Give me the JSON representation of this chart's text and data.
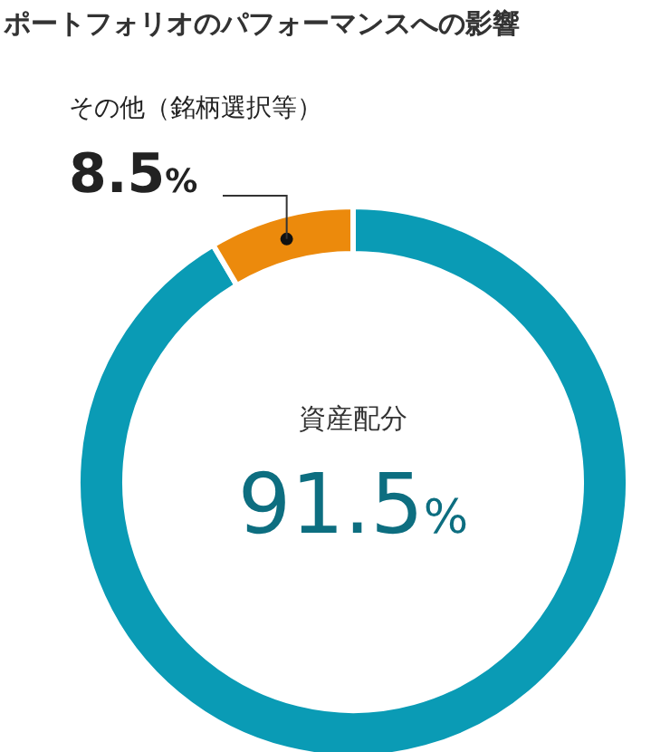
{
  "chart_data": {
    "type": "donut",
    "title": "ポートフォリオのパフォーマンスへの影響",
    "categories": [
      "資産配分",
      "その他（銘柄選択等）"
    ],
    "values": [
      91.5,
      8.5
    ],
    "colors": [
      "#0a9bb5",
      "#ec8a0c"
    ],
    "value_labels": [
      "91.5%",
      "8.5%"
    ]
  }
}
